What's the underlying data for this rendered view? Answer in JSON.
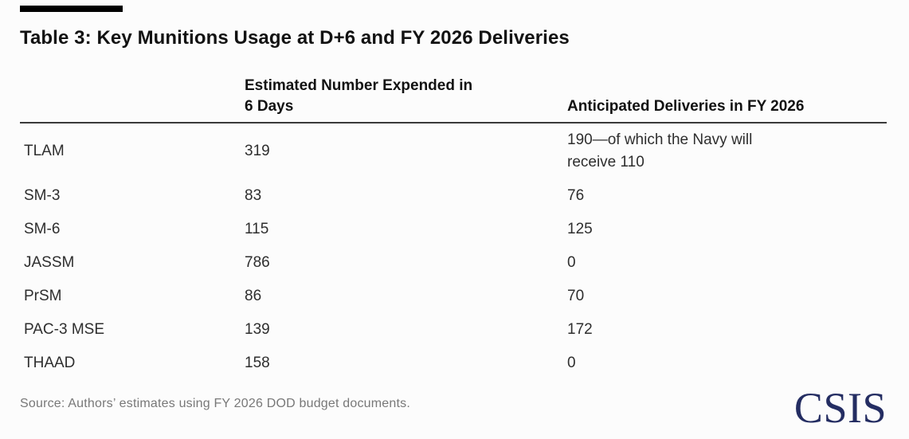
{
  "chart_data": {
    "type": "table",
    "title": "Table 3: Key Munitions Usage at D+6 and FY 2026 Deliveries",
    "columns": {
      "munition": "",
      "expended": "Estimated Number Expended in 6 Days",
      "deliveries": "Anticipated Deliveries in FY 2026"
    },
    "rows": [
      {
        "munition": "TLAM",
        "expended": "319",
        "deliveries": "190—of which the Navy will receive 110"
      },
      {
        "munition": "SM-3",
        "expended": "83",
        "deliveries": "76"
      },
      {
        "munition": "SM-6",
        "expended": "115",
        "deliveries": "125"
      },
      {
        "munition": "JASSM",
        "expended": "786",
        "deliveries": "0"
      },
      {
        "munition": "PrSM",
        "expended": "86",
        "deliveries": "70"
      },
      {
        "munition": "PAC-3 MSE",
        "expended": "139",
        "deliveries": "172"
      },
      {
        "munition": "THAAD",
        "expended": "158",
        "deliveries": "0"
      }
    ],
    "source": "Source: Authors’ estimates using FY 2026 DOD budget documents.",
    "layout": {
      "grid": "off",
      "header_rule": true,
      "legend": "none"
    }
  },
  "branding": {
    "logo_text": "CSIS",
    "logo_color": "#242d62"
  },
  "colors": {
    "background": "#fcfcfc",
    "top_rule": "#000000",
    "title_text": "#121212",
    "header_text": "#121212",
    "body_text": "#2e2e2e",
    "divider": "#3a3a3a",
    "source_text": "#787878"
  }
}
